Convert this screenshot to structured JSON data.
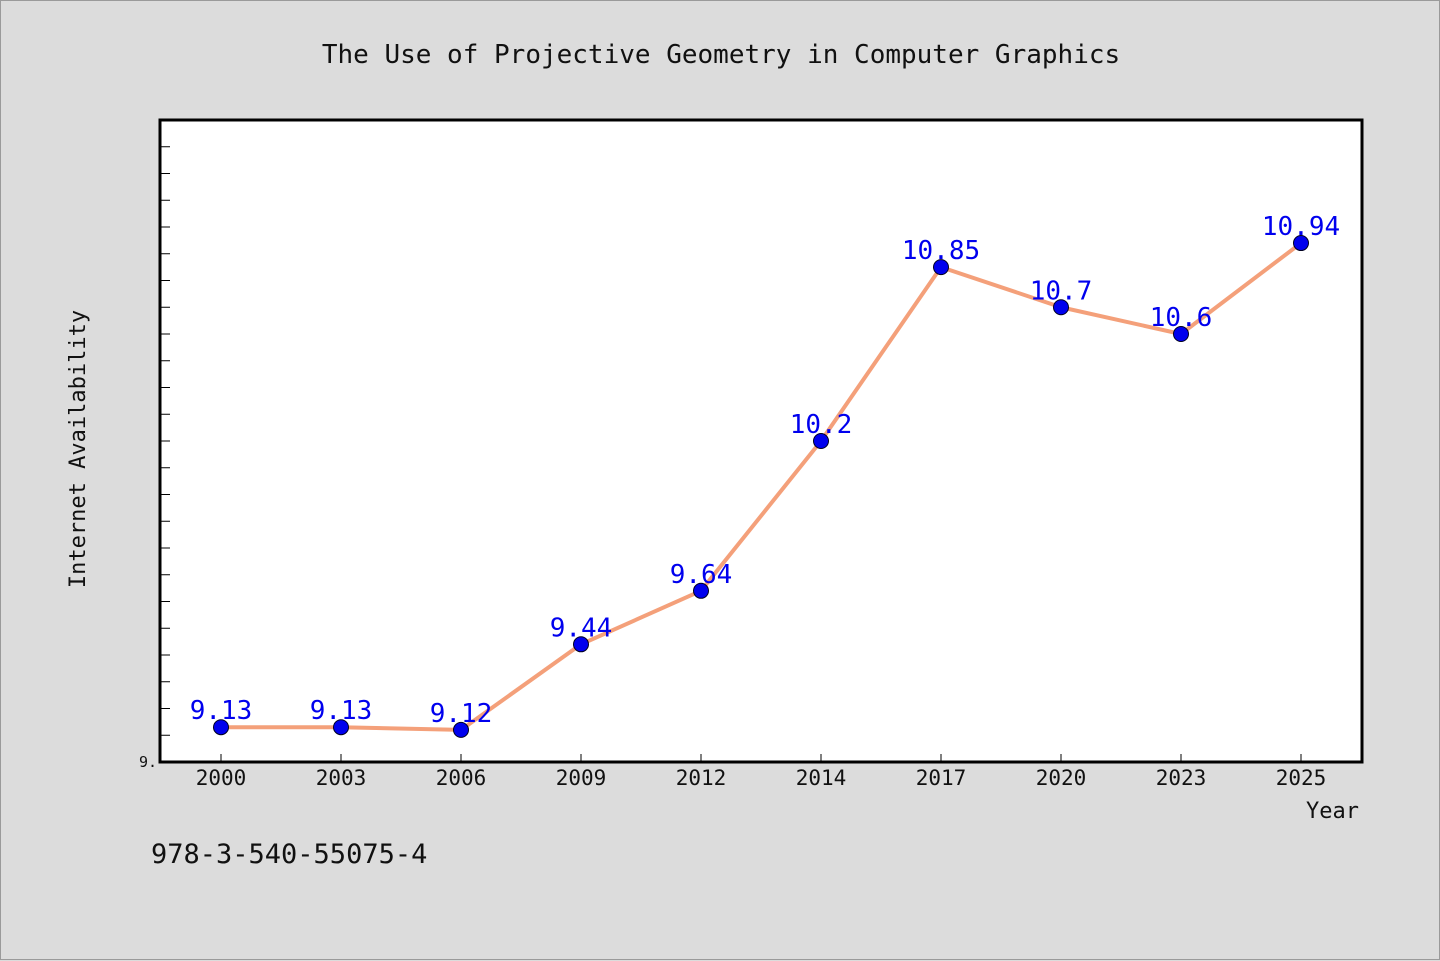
{
  "chart_data": {
    "type": "line",
    "title": "The Use of Projective Geometry in Computer Graphics",
    "xlabel": "Year",
    "ylabel": "Internet Availability",
    "categories": [
      "2000",
      "2003",
      "2006",
      "2009",
      "2012",
      "2014",
      "2017",
      "2020",
      "2023",
      "2025"
    ],
    "series": [
      {
        "values": [
          9.13,
          9.13,
          9.12,
          9.44,
          9.64,
          10.2,
          10.85,
          10.7,
          10.6,
          10.94
        ],
        "labels": [
          "9.13",
          "9.13",
          "9.12",
          "9.44",
          "9.64",
          "10.2",
          "10.85",
          "10.7",
          "10.6",
          "10.94"
        ],
        "line_color": "#f4a07a",
        "marker_color": "#0000ee"
      }
    ],
    "ylim": [
      9.0,
      11.4
    ],
    "ytick_step": 0.1,
    "ytick_labels": [
      {
        "value": 9.0,
        "text": "9."
      }
    ],
    "grid": false,
    "legend": "none"
  },
  "footer_text": "978-3-540-55075-4",
  "colors": {
    "background": "#dcdcdc",
    "plot_background": "#ffffff",
    "axis": "#000000",
    "label_text": "#0000ee"
  }
}
